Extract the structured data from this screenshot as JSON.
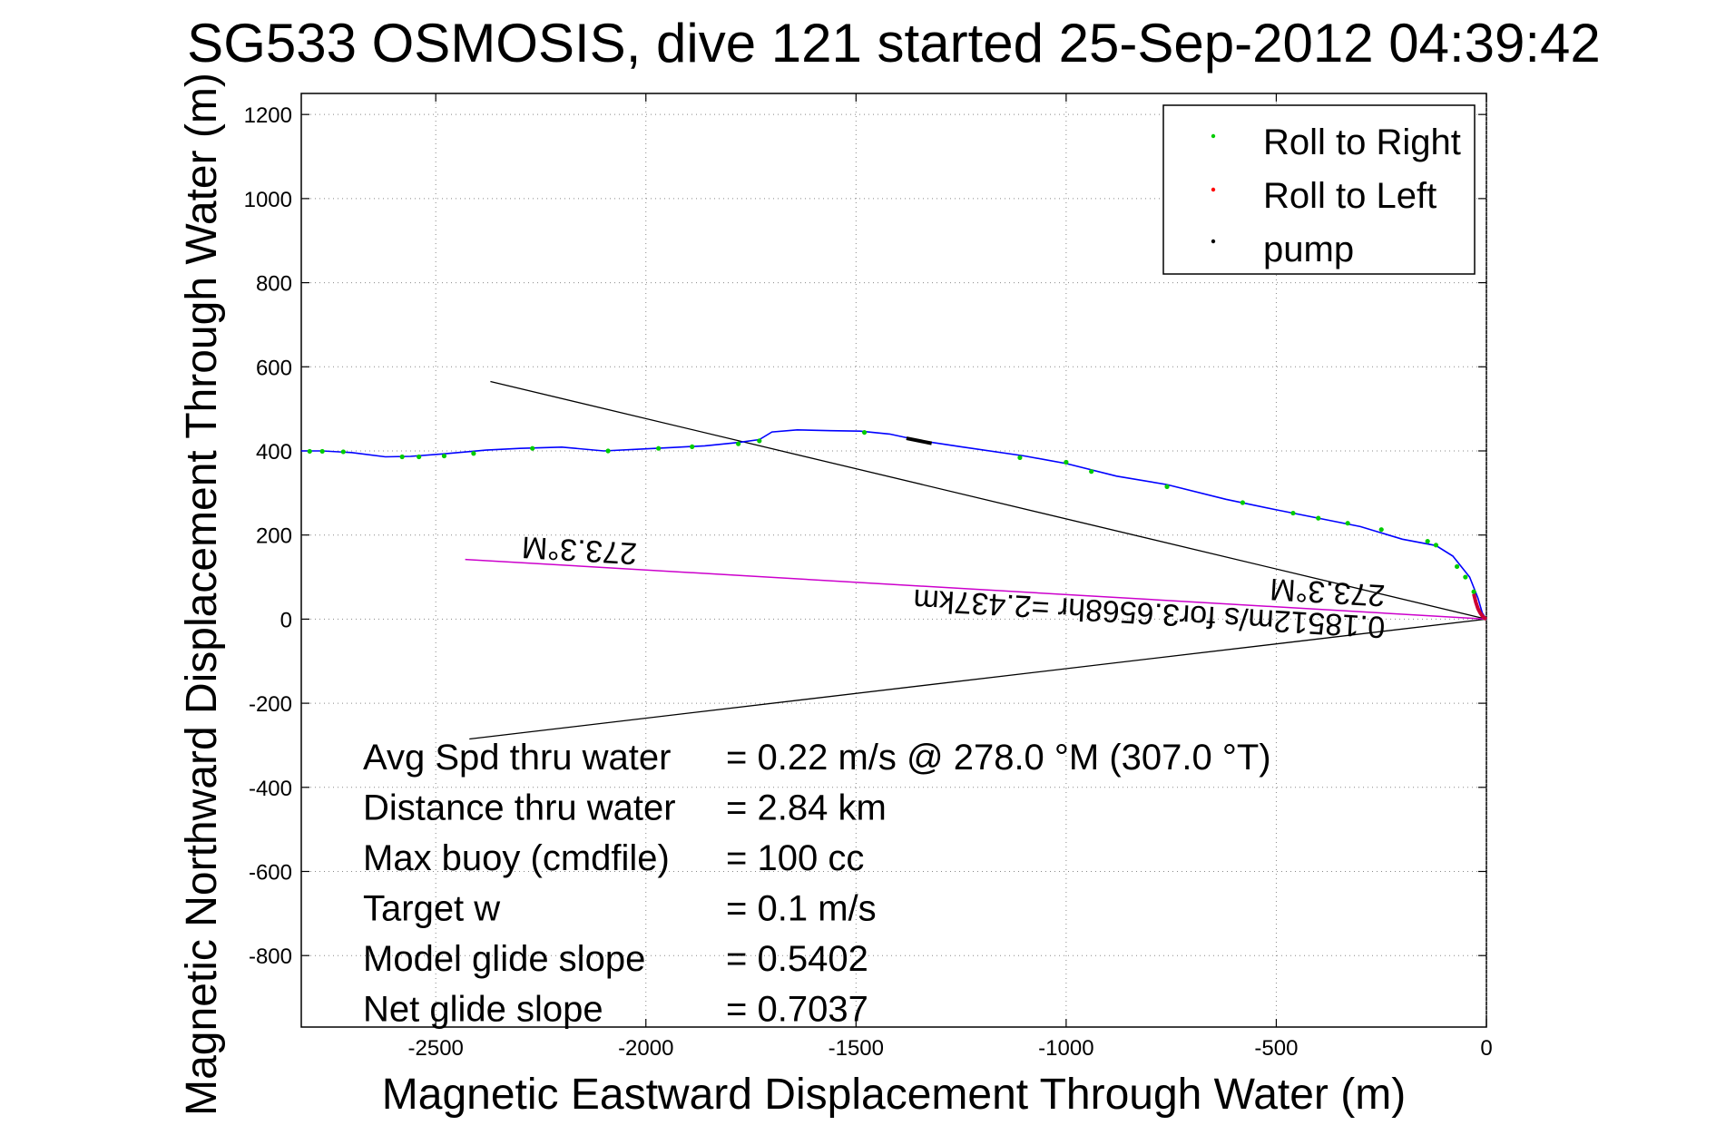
{
  "chart_data": {
    "type": "line",
    "title": "SG533 OSMOSIS, dive 121 started 25-Sep-2012 04:39:42",
    "xlabel": "Magnetic Eastward Displacement Through Water (m)",
    "ylabel": "Magnetic Northward Displacement Through Water (m)",
    "xlim": [
      -2820,
      0
    ],
    "ylim": [
      -970,
      1250
    ],
    "xticks": [
      -2500,
      -2000,
      -1500,
      -1000,
      -500,
      0
    ],
    "yticks": [
      1200,
      1000,
      800,
      600,
      400,
      200,
      0,
      -200,
      -400,
      -600,
      -800
    ],
    "grid": true,
    "legend_position": "top-right",
    "legend": [
      {
        "label": "Roll to Right",
        "color": "#00cc00"
      },
      {
        "label": "Roll to Left",
        "color": "#ff0000"
      },
      {
        "label": "pump",
        "color": "#000000"
      }
    ],
    "track": {
      "color": "#0000ff",
      "x": [
        -2820,
        -2770,
        -2700,
        -2620,
        -2560,
        -2480,
        -2380,
        -2300,
        -2200,
        -2100,
        -2000,
        -1940,
        -1860,
        -1780,
        -1730,
        -1700,
        -1640,
        -1560,
        -1490,
        -1420,
        -1350,
        -1250,
        -1100,
        -1000,
        -880,
        -760,
        -620,
        -500,
        -400,
        -300,
        -200,
        -120,
        -80,
        -40,
        -20,
        -10,
        0
      ],
      "y": [
        400,
        400,
        396,
        386,
        387,
        393,
        402,
        406,
        409,
        400,
        405,
        408,
        412,
        420,
        427,
        445,
        450,
        448,
        447,
        440,
        425,
        410,
        388,
        370,
        340,
        320,
        285,
        260,
        240,
        220,
        190,
        175,
        150,
        100,
        50,
        15,
        0
      ]
    },
    "roll_right_points": {
      "color": "#00cc00",
      "x": [
        -2800,
        -2770,
        -2720,
        -2580,
        -2540,
        -2480,
        -2410,
        -2270,
        -2090,
        -1970,
        -1890,
        -1780,
        -1730,
        -1480,
        -1110,
        -1000,
        -940,
        -760,
        -580,
        -460,
        -400,
        -330,
        -250,
        -140,
        -120,
        -70,
        -50,
        -30
      ],
      "y": [
        399,
        399,
        398,
        386,
        386,
        388,
        394,
        406,
        400,
        406,
        410,
        417,
        424,
        444,
        384,
        373,
        351,
        315,
        277,
        252,
        240,
        228,
        213,
        185,
        176,
        125,
        100,
        65
      ]
    },
    "roll_left_points": {
      "color": "#cc0033",
      "x": [
        -30,
        -25,
        -20,
        -15,
        -10,
        -5,
        0
      ],
      "y": [
        60,
        40,
        25,
        15,
        8,
        3,
        0
      ]
    },
    "pump_segment": {
      "color": "#000000",
      "x": [
        -1380,
        -1320
      ],
      "y": [
        430,
        418
      ]
    },
    "heading_lines": {
      "color": "#000000",
      "upper": {
        "x": [
          -2370,
          0
        ],
        "y": [
          565,
          0
        ]
      },
      "lower": {
        "x": [
          -2420,
          0
        ],
        "y": [
          -285,
          0
        ]
      }
    },
    "net_vector": {
      "color": "#cc00cc",
      "x": [
        -2430,
        0
      ],
      "y": [
        142,
        0
      ]
    },
    "rotated_labels": [
      {
        "text": "273.3°M",
        "x": -2020,
        "y": 180
      },
      {
        "text": "273.3°M",
        "x": -240,
        "y": 80
      },
      {
        "text": "0.18512m/s for3.6568hr =2.437km",
        "x": -240,
        "y": 5
      }
    ],
    "summary": [
      {
        "label": "Avg Spd thru water",
        "value": "=  0.22 m/s @ 278.0 °M (307.0 °T)"
      },
      {
        "label": "Distance thru water",
        "value": "=  2.84 km"
      },
      {
        "label": "Max buoy (cmdfile)",
        "value": "= 100 cc"
      },
      {
        "label": "Target w",
        "value": "= 0.1 m/s"
      },
      {
        "label": "Model glide slope",
        "value": "= 0.5402"
      },
      {
        "label": "Net glide slope",
        "value": "= 0.7037"
      }
    ]
  }
}
